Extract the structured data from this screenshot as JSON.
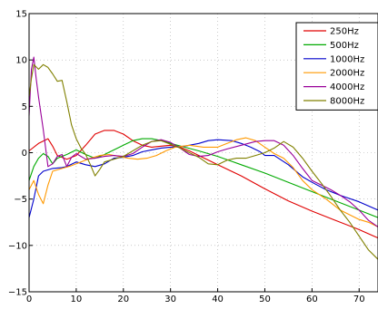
{
  "chart_data": {
    "type": "line",
    "title": "",
    "xlabel": "",
    "ylabel": "",
    "xlim": [
      0,
      74
    ],
    "ylim": [
      -15,
      15
    ],
    "x_ticks": [
      0,
      10,
      20,
      30,
      40,
      50,
      60,
      70
    ],
    "y_ticks": [
      -15,
      -10,
      -5,
      0,
      5,
      10,
      15
    ],
    "x_tick_labels": [
      "0",
      "10",
      "20",
      "30",
      "40",
      "50",
      "60",
      "70"
    ],
    "y_tick_labels": [
      "−15",
      "−10",
      "−5",
      "0",
      "5",
      "10",
      "15"
    ],
    "grid": true,
    "legend_position": "top-right",
    "series": [
      {
        "name": "250Hz",
        "color": "#e00000",
        "points": [
          [
            0,
            0.2
          ],
          [
            2,
            1.0
          ],
          [
            4,
            1.5
          ],
          [
            5,
            0.7
          ],
          [
            6,
            -0.3
          ],
          [
            8,
            -0.7
          ],
          [
            10,
            -0.3
          ],
          [
            12,
            0.8
          ],
          [
            14,
            2.0
          ],
          [
            16,
            2.4
          ],
          [
            18,
            2.4
          ],
          [
            20,
            2.0
          ],
          [
            22,
            1.3
          ],
          [
            24,
            0.8
          ],
          [
            26,
            0.6
          ],
          [
            28,
            0.7
          ],
          [
            30,
            0.8
          ],
          [
            32,
            0.6
          ],
          [
            34,
            0.2
          ],
          [
            36,
            -0.3
          ],
          [
            40,
            -1.3
          ],
          [
            45,
            -2.5
          ],
          [
            50,
            -3.9
          ],
          [
            55,
            -5.2
          ],
          [
            60,
            -6.3
          ],
          [
            65,
            -7.3
          ],
          [
            70,
            -8.3
          ],
          [
            74,
            -9.2
          ]
        ]
      },
      {
        "name": "500Hz",
        "color": "#00aa00",
        "points": [
          [
            0,
            -3.0
          ],
          [
            1,
            -1.5
          ],
          [
            2,
            -0.6
          ],
          [
            3,
            -0.1
          ],
          [
            4,
            -0.4
          ],
          [
            5,
            -1.2
          ],
          [
            6,
            -0.6
          ],
          [
            8,
            -0.2
          ],
          [
            10,
            0.3
          ],
          [
            12,
            -0.2
          ],
          [
            14,
            -0.6
          ],
          [
            16,
            -0.2
          ],
          [
            18,
            0.3
          ],
          [
            20,
            0.8
          ],
          [
            22,
            1.3
          ],
          [
            24,
            1.5
          ],
          [
            26,
            1.5
          ],
          [
            28,
            1.3
          ],
          [
            30,
            1.0
          ],
          [
            33,
            0.6
          ],
          [
            36,
            0.2
          ],
          [
            40,
            -0.4
          ],
          [
            45,
            -1.3
          ],
          [
            50,
            -2.2
          ],
          [
            55,
            -3.2
          ],
          [
            60,
            -4.2
          ],
          [
            65,
            -5.2
          ],
          [
            70,
            -6.2
          ],
          [
            74,
            -7.0
          ]
        ]
      },
      {
        "name": "1000Hz",
        "color": "#0000cc",
        "points": [
          [
            0,
            -7.0
          ],
          [
            1,
            -5.0
          ],
          [
            2,
            -2.5
          ],
          [
            3,
            -2.0
          ],
          [
            5,
            -1.7
          ],
          [
            7,
            -1.6
          ],
          [
            8,
            -1.5
          ],
          [
            10,
            -1.0
          ],
          [
            12,
            -1.3
          ],
          [
            14,
            -1.5
          ],
          [
            16,
            -1.2
          ],
          [
            18,
            -0.6
          ],
          [
            20,
            -0.5
          ],
          [
            22,
            -0.3
          ],
          [
            24,
            0.1
          ],
          [
            26,
            0.3
          ],
          [
            28,
            0.5
          ],
          [
            30,
            0.6
          ],
          [
            33,
            0.7
          ],
          [
            36,
            1.0
          ],
          [
            38,
            1.3
          ],
          [
            40,
            1.4
          ],
          [
            43,
            1.3
          ],
          [
            45,
            1.0
          ],
          [
            47,
            0.6
          ],
          [
            49,
            0.1
          ],
          [
            50,
            -0.3
          ],
          [
            52,
            -0.3
          ],
          [
            55,
            -1.3
          ],
          [
            58,
            -2.6
          ],
          [
            60,
            -3.2
          ],
          [
            63,
            -4.0
          ],
          [
            66,
            -4.6
          ],
          [
            70,
            -5.3
          ],
          [
            74,
            -6.2
          ]
        ]
      },
      {
        "name": "2000Hz",
        "color": "#ff9900",
        "points": [
          [
            0,
            -4.0
          ],
          [
            1,
            -3.0
          ],
          [
            2,
            -4.5
          ],
          [
            3,
            -5.5
          ],
          [
            4,
            -3.5
          ],
          [
            5,
            -2.0
          ],
          [
            7,
            -1.7
          ],
          [
            9,
            -1.4
          ],
          [
            11,
            -1.0
          ],
          [
            13,
            -0.6
          ],
          [
            15,
            -0.3
          ],
          [
            17,
            -0.2
          ],
          [
            19,
            -0.4
          ],
          [
            21,
            -0.6
          ],
          [
            23,
            -0.7
          ],
          [
            25,
            -0.6
          ],
          [
            27,
            -0.3
          ],
          [
            29,
            0.2
          ],
          [
            31,
            0.6
          ],
          [
            34,
            0.8
          ],
          [
            37,
            0.6
          ],
          [
            40,
            0.6
          ],
          [
            42,
            1.0
          ],
          [
            44,
            1.4
          ],
          [
            46,
            1.6
          ],
          [
            48,
            1.3
          ],
          [
            50,
            0.6
          ],
          [
            52,
            -0.1
          ],
          [
            54,
            -0.6
          ],
          [
            56,
            -1.6
          ],
          [
            58,
            -3.0
          ],
          [
            60,
            -4.0
          ],
          [
            63,
            -5.0
          ],
          [
            66,
            -6.2
          ],
          [
            70,
            -7.2
          ],
          [
            72,
            -7.5
          ],
          [
            74,
            -8.0
          ]
        ]
      },
      {
        "name": "4000Hz",
        "color": "#990099",
        "points": [
          [
            0,
            4.0
          ],
          [
            0.5,
            9.0
          ],
          [
            1,
            10.3
          ],
          [
            1.5,
            8.0
          ],
          [
            2,
            6.0
          ],
          [
            3,
            2.5
          ],
          [
            4,
            -1.5
          ],
          [
            5,
            -1.2
          ],
          [
            6,
            -0.4
          ],
          [
            7,
            -0.2
          ],
          [
            8,
            -1.5
          ],
          [
            9,
            -0.5
          ],
          [
            10,
            -0.1
          ],
          [
            12,
            -0.7
          ],
          [
            14,
            -0.6
          ],
          [
            16,
            -0.4
          ],
          [
            18,
            -0.3
          ],
          [
            20,
            -0.4
          ],
          [
            22,
            -0.1
          ],
          [
            24,
            0.6
          ],
          [
            26,
            1.2
          ],
          [
            28,
            1.4
          ],
          [
            30,
            1.1
          ],
          [
            32,
            0.5
          ],
          [
            34,
            -0.2
          ],
          [
            36,
            -0.4
          ],
          [
            38,
            -0.3
          ],
          [
            40,
            0.1
          ],
          [
            42,
            0.4
          ],
          [
            45,
            0.8
          ],
          [
            48,
            1.2
          ],
          [
            50,
            1.3
          ],
          [
            52,
            1.3
          ],
          [
            54,
            0.8
          ],
          [
            56,
            -0.3
          ],
          [
            58,
            -1.7
          ],
          [
            60,
            -3.0
          ],
          [
            62,
            -3.5
          ],
          [
            64,
            -4.0
          ],
          [
            66,
            -4.6
          ],
          [
            68,
            -5.3
          ],
          [
            70,
            -6.2
          ],
          [
            72,
            -7.3
          ],
          [
            74,
            -8.0
          ]
        ]
      },
      {
        "name": "8000Hz",
        "color": "#808000",
        "points": [
          [
            0,
            6.0
          ],
          [
            0.5,
            8.0
          ],
          [
            1,
            9.5
          ],
          [
            2,
            9.0
          ],
          [
            3,
            9.5
          ],
          [
            4,
            9.2
          ],
          [
            5,
            8.5
          ],
          [
            6,
            7.7
          ],
          [
            7,
            7.8
          ],
          [
            8,
            5.5
          ],
          [
            9,
            3.0
          ],
          [
            10,
            1.5
          ],
          [
            11,
            0.5
          ],
          [
            12,
            -0.2
          ],
          [
            13,
            -1.3
          ],
          [
            14,
            -2.5
          ],
          [
            15,
            -1.8
          ],
          [
            16,
            -1.0
          ],
          [
            18,
            -0.7
          ],
          [
            20,
            -0.4
          ],
          [
            22,
            0.2
          ],
          [
            24,
            0.8
          ],
          [
            26,
            1.2
          ],
          [
            28,
            1.3
          ],
          [
            30,
            0.9
          ],
          [
            32,
            0.5
          ],
          [
            34,
            0.0
          ],
          [
            36,
            -0.5
          ],
          [
            38,
            -1.2
          ],
          [
            40,
            -1.3
          ],
          [
            42,
            -0.8
          ],
          [
            44,
            -0.6
          ],
          [
            46,
            -0.6
          ],
          [
            48,
            -0.3
          ],
          [
            50,
            0.0
          ],
          [
            52,
            0.5
          ],
          [
            54,
            1.2
          ],
          [
            56,
            0.6
          ],
          [
            58,
            -0.6
          ],
          [
            60,
            -2.0
          ],
          [
            62,
            -3.3
          ],
          [
            64,
            -4.7
          ],
          [
            66,
            -6.2
          ],
          [
            68,
            -7.5
          ],
          [
            70,
            -9.0
          ],
          [
            72,
            -10.5
          ],
          [
            74,
            -11.5
          ]
        ]
      }
    ]
  }
}
